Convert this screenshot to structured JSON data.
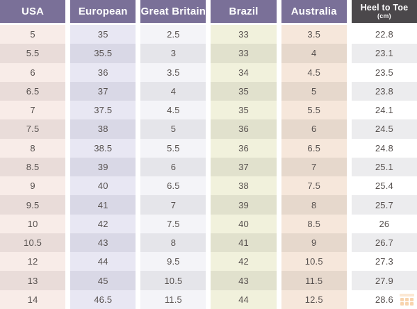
{
  "chart_data": {
    "type": "table",
    "columns": [
      "USA",
      "European",
      "Great Britain",
      "Brazil",
      "Australia",
      "Heel to Toe (cm)"
    ],
    "rows": [
      [
        "5",
        "35",
        "2.5",
        "33",
        "3.5",
        "22.8"
      ],
      [
        "5.5",
        "35.5",
        "3",
        "33",
        "4",
        "23.1"
      ],
      [
        "6",
        "36",
        "3.5",
        "34",
        "4.5",
        "23.5"
      ],
      [
        "6.5",
        "37",
        "4",
        "35",
        "5",
        "23.8"
      ],
      [
        "7",
        "37.5",
        "4.5",
        "35",
        "5.5",
        "24.1"
      ],
      [
        "7.5",
        "38",
        "5",
        "36",
        "6",
        "24.5"
      ],
      [
        "8",
        "38.5",
        "5.5",
        "36",
        "6.5",
        "24.8"
      ],
      [
        "8.5",
        "39",
        "6",
        "37",
        "7",
        "25.1"
      ],
      [
        "9",
        "40",
        "6.5",
        "38",
        "7.5",
        "25.4"
      ],
      [
        "9.5",
        "41",
        "7",
        "39",
        "8",
        "25.7"
      ],
      [
        "10",
        "42",
        "7.5",
        "40",
        "8.5",
        "26"
      ],
      [
        "10.5",
        "43",
        "8",
        "41",
        "9",
        "26.7"
      ],
      [
        "12",
        "44",
        "9.5",
        "42",
        "10.5",
        "27.3"
      ],
      [
        "13",
        "45",
        "10.5",
        "43",
        "11.5",
        "27.9"
      ],
      [
        "14",
        "46.5",
        "11.5",
        "44",
        "12.5",
        "28.6"
      ]
    ]
  },
  "header": {
    "labels": [
      "USA",
      "European",
      "Great Britain",
      "Brazil",
      "Australia",
      "Heel to Toe"
    ],
    "sub_cm": "(cm)"
  },
  "colors": {
    "header_bg": "#7a7098",
    "header_dark_bg": "#4b484b",
    "header_text": "#ffffff",
    "cell_text": "#56504e",
    "gap": "#ffffff",
    "column_shade_light": [
      "#f8ece8",
      "#e8e7f3",
      "#f4f4f8",
      "#f1f1dc",
      "#f6e7db",
      "#ffffff"
    ],
    "column_shade_dark": [
      "#e9dcd9",
      "#d9d8e6",
      "#e5e5ea",
      "#e1e1cd",
      "#e6d8cc",
      "#ececee"
    ],
    "watermark": "#f0a24e"
  },
  "icons": {
    "watermark": "grid-logo-watermark"
  }
}
